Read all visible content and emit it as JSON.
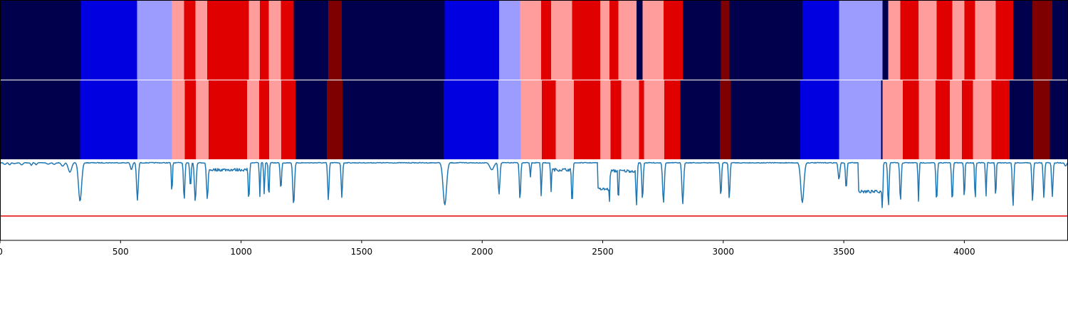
{
  "chart_data": {
    "type": "heatmap",
    "title": "",
    "xlabel": "",
    "ylabel": "",
    "xlim": [
      0,
      4430
    ],
    "x_ticks": [
      0,
      500,
      1000,
      1500,
      2000,
      2500,
      3000,
      3500,
      4000
    ],
    "segment_colors": {
      "0": "#00004c",
      "1": "#0000e0",
      "2": "#9c9cff",
      "3": "#ff9c9c",
      "4": "#e00000",
      "5": "#7e0000"
    },
    "rows": [
      {
        "segments": [
          [
            0,
            337,
            0
          ],
          [
            337,
            568,
            1
          ],
          [
            568,
            713,
            2
          ],
          [
            713,
            764,
            3
          ],
          [
            764,
            810,
            4
          ],
          [
            810,
            860,
            3
          ],
          [
            860,
            1032,
            4
          ],
          [
            1032,
            1078,
            3
          ],
          [
            1078,
            1115,
            4
          ],
          [
            1115,
            1165,
            3
          ],
          [
            1165,
            1218,
            4
          ],
          [
            1218,
            1362,
            0
          ],
          [
            1362,
            1418,
            5
          ],
          [
            1418,
            1845,
            0
          ],
          [
            1845,
            2070,
            1
          ],
          [
            2070,
            2157,
            2
          ],
          [
            2157,
            2245,
            3
          ],
          [
            2245,
            2286,
            4
          ],
          [
            2286,
            2373,
            3
          ],
          [
            2373,
            2490,
            4
          ],
          [
            2490,
            2528,
            3
          ],
          [
            2528,
            2565,
            4
          ],
          [
            2565,
            2640,
            3
          ],
          [
            2640,
            2665,
            0
          ],
          [
            2665,
            2752,
            3
          ],
          [
            2752,
            2832,
            4
          ],
          [
            2832,
            2990,
            0
          ],
          [
            2990,
            3025,
            5
          ],
          [
            3025,
            3328,
            0
          ],
          [
            3328,
            3480,
            1
          ],
          [
            3480,
            3660,
            2
          ],
          [
            3660,
            3685,
            0
          ],
          [
            3685,
            3735,
            3
          ],
          [
            3735,
            3810,
            4
          ],
          [
            3810,
            3885,
            3
          ],
          [
            3885,
            3950,
            4
          ],
          [
            3950,
            4000,
            3
          ],
          [
            4000,
            4045,
            4
          ],
          [
            4045,
            4130,
            3
          ],
          [
            4130,
            4202,
            4
          ],
          [
            4202,
            4283,
            0
          ],
          [
            4283,
            4365,
            5
          ],
          [
            4365,
            4430,
            0
          ]
        ]
      },
      {
        "segments": [
          [
            0,
            332,
            0
          ],
          [
            332,
            570,
            1
          ],
          [
            570,
            713,
            2
          ],
          [
            713,
            766,
            3
          ],
          [
            766,
            812,
            4
          ],
          [
            812,
            865,
            3
          ],
          [
            865,
            1025,
            4
          ],
          [
            1025,
            1075,
            3
          ],
          [
            1075,
            1117,
            4
          ],
          [
            1117,
            1167,
            3
          ],
          [
            1167,
            1225,
            4
          ],
          [
            1225,
            1355,
            0
          ],
          [
            1355,
            1420,
            5
          ],
          [
            1420,
            1840,
            0
          ],
          [
            1840,
            2067,
            1
          ],
          [
            2067,
            2160,
            2
          ],
          [
            2160,
            2248,
            3
          ],
          [
            2248,
            2305,
            4
          ],
          [
            2305,
            2380,
            3
          ],
          [
            2380,
            2490,
            4
          ],
          [
            2490,
            2533,
            3
          ],
          [
            2533,
            2577,
            4
          ],
          [
            2577,
            2650,
            3
          ],
          [
            2650,
            2672,
            4
          ],
          [
            2672,
            2755,
            3
          ],
          [
            2755,
            2822,
            4
          ],
          [
            2822,
            2986,
            0
          ],
          [
            2986,
            3032,
            5
          ],
          [
            3032,
            3320,
            0
          ],
          [
            3320,
            3480,
            1
          ],
          [
            3480,
            3655,
            2
          ],
          [
            3655,
            3660,
            0
          ],
          [
            3660,
            3745,
            3
          ],
          [
            3745,
            3812,
            4
          ],
          [
            3812,
            3880,
            3
          ],
          [
            3880,
            3940,
            4
          ],
          [
            3940,
            3990,
            3
          ],
          [
            3990,
            4035,
            4
          ],
          [
            4035,
            4112,
            3
          ],
          [
            4112,
            4188,
            4
          ],
          [
            4188,
            4285,
            0
          ],
          [
            4285,
            4355,
            5
          ],
          [
            4355,
            4430,
            0
          ]
        ]
      }
    ],
    "line_plot": {
      "ylim": [
        -3.2,
        0.1
      ],
      "threshold": -2.2,
      "threshold_color": "#e00000",
      "line_color": "#1f77b4",
      "baseline": 0,
      "dips": [
        [
          20,
          -0.08,
          8
        ],
        [
          40,
          -0.1,
          6
        ],
        [
          60,
          -0.05,
          10
        ],
        [
          90,
          -0.1,
          8
        ],
        [
          130,
          -0.12,
          5
        ],
        [
          150,
          -0.1,
          5
        ],
        [
          200,
          -0.07,
          10
        ],
        [
          225,
          -0.08,
          8
        ],
        [
          260,
          -0.15,
          9
        ],
        [
          290,
          -0.4,
          10
        ],
        [
          332,
          -1.6,
          9
        ],
        [
          545,
          -0.3,
          6
        ],
        [
          570,
          -1.55,
          5
        ],
        [
          713,
          -1.3,
          3
        ],
        [
          764,
          -1.55,
          4
        ],
        [
          790,
          -1.0,
          4
        ],
        [
          810,
          -1.6,
          5
        ],
        [
          860,
          -1.5,
          5
        ],
        [
          1032,
          -1.55,
          4
        ],
        [
          1078,
          -1.4,
          3
        ],
        [
          1096,
          -1.3,
          3
        ],
        [
          1115,
          -1.5,
          3
        ],
        [
          1165,
          -1.1,
          4
        ],
        [
          1218,
          -1.75,
          5
        ],
        [
          1362,
          -1.55,
          4
        ],
        [
          1418,
          -1.45,
          4
        ],
        [
          1845,
          -1.75,
          10
        ],
        [
          2040,
          -0.3,
          12
        ],
        [
          2070,
          -1.3,
          5
        ],
        [
          2157,
          -1.55,
          4
        ],
        [
          2200,
          -0.6,
          3
        ],
        [
          2245,
          -1.4,
          3
        ],
        [
          2286,
          -1.2,
          3
        ],
        [
          2373,
          -1.7,
          4
        ],
        [
          2528,
          -1.6,
          3
        ],
        [
          2565,
          -1.7,
          3
        ],
        [
          2640,
          -1.75,
          4
        ],
        [
          2665,
          -1.55,
          4
        ],
        [
          2752,
          -1.65,
          5
        ],
        [
          2832,
          -1.7,
          5
        ],
        [
          2990,
          -1.4,
          4
        ],
        [
          3025,
          -1.5,
          4
        ],
        [
          3328,
          -1.65,
          9
        ],
        [
          3480,
          -0.7,
          5
        ],
        [
          3510,
          -1.1,
          4
        ],
        [
          3660,
          -2.0,
          3
        ],
        [
          3685,
          -1.8,
          4
        ],
        [
          3735,
          -1.6,
          4
        ],
        [
          3810,
          -1.6,
          3
        ],
        [
          3885,
          -1.6,
          4
        ],
        [
          3950,
          -1.6,
          4
        ],
        [
          4000,
          -1.55,
          3
        ],
        [
          4045,
          -1.6,
          3
        ],
        [
          4090,
          -1.4,
          3
        ],
        [
          4130,
          -1.5,
          3
        ],
        [
          4202,
          -1.8,
          4
        ],
        [
          4283,
          -1.6,
          4
        ],
        [
          4330,
          -1.45,
          4
        ],
        [
          4365,
          -1.4,
          4
        ],
        [
          4420,
          -0.15,
          6
        ]
      ],
      "plateaus": [
        [
          860,
          1032,
          -0.3
        ],
        [
          2480,
          2528,
          -1.1
        ],
        [
          2528,
          2640,
          -0.35
        ],
        [
          3560,
          3660,
          -1.2
        ],
        [
          2286,
          2373,
          -0.3
        ]
      ]
    }
  }
}
